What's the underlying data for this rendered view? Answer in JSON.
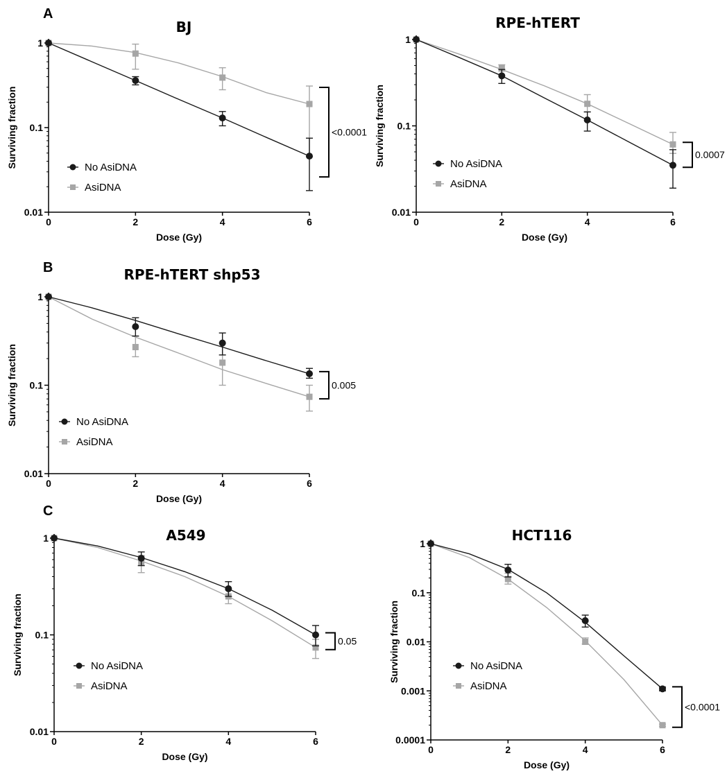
{
  "colors": {
    "no_asidna": "#1a1a1a",
    "asidna": "#a6a6a6",
    "axis": "#000000"
  },
  "chart_data": [
    {
      "panel": "A",
      "type": "line",
      "title": "BJ",
      "xlabel": "Dose (Gy)",
      "ylabel": "Surviving fraction",
      "yscale": "log",
      "xlim": [
        0,
        6
      ],
      "ylim": [
        0.01,
        1
      ],
      "xticks": [
        0,
        2,
        4,
        6
      ],
      "yticks": [
        1,
        0.1,
        0.01
      ],
      "yticklabels": [
        "1",
        "0.1",
        "0.01"
      ],
      "legend_position": "bottom-left",
      "significance": "<0.0001",
      "series": [
        {
          "name": "No AsiDNA",
          "color": "#1a1a1a",
          "marker": "circle",
          "x": [
            0,
            2,
            4,
            6
          ],
          "y": [
            1,
            0.36,
            0.13,
            0.046
          ],
          "err_low": [
            1,
            0.32,
            0.105,
            0.018
          ],
          "err_high": [
            1,
            0.4,
            0.155,
            0.075
          ],
          "fit_x": [
            0,
            1,
            2,
            3,
            4,
            5,
            6
          ],
          "fit_y": [
            1,
            0.6,
            0.36,
            0.215,
            0.13,
            0.077,
            0.046
          ]
        },
        {
          "name": "AsiDNA",
          "color": "#a6a6a6",
          "marker": "square",
          "x": [
            0,
            2,
            4,
            6
          ],
          "y": [
            1,
            0.75,
            0.39,
            0.19
          ],
          "err_low": [
            1,
            0.49,
            0.28,
            0.045
          ],
          "err_high": [
            1,
            0.97,
            0.51,
            0.31
          ],
          "fit_x": [
            0,
            1,
            2,
            3,
            4,
            5,
            6
          ],
          "fit_y": [
            1,
            0.92,
            0.77,
            0.58,
            0.4,
            0.26,
            0.19
          ]
        }
      ]
    },
    {
      "panel": "",
      "type": "line",
      "title": "RPE-hTERT",
      "xlabel": "Dose (Gy)",
      "ylabel": "Surviving fraction",
      "yscale": "log",
      "xlim": [
        0,
        6
      ],
      "ylim": [
        0.01,
        1
      ],
      "xticks": [
        0,
        2,
        4,
        6
      ],
      "yticks": [
        1,
        0.1,
        0.01
      ],
      "yticklabels": [
        "1",
        "0.1",
        "0.01"
      ],
      "legend_position": "bottom-left",
      "significance": "0.0007",
      "series": [
        {
          "name": "No AsiDNA",
          "color": "#1a1a1a",
          "marker": "circle",
          "x": [
            0,
            2,
            4,
            6
          ],
          "y": [
            1,
            0.38,
            0.117,
            0.035
          ],
          "err_low": [
            1,
            0.31,
            0.087,
            0.019
          ],
          "err_high": [
            1,
            0.45,
            0.145,
            0.053
          ],
          "fit_x": [
            0,
            1,
            2,
            3,
            4,
            5,
            6
          ],
          "fit_y": [
            1,
            0.62,
            0.38,
            0.21,
            0.117,
            0.064,
            0.035
          ]
        },
        {
          "name": "AsiDNA",
          "color": "#a6a6a6",
          "marker": "square",
          "x": [
            0,
            2,
            4,
            6
          ],
          "y": [
            1,
            0.47,
            0.18,
            0.061
          ],
          "err_low": [
            1,
            0.43,
            0.145,
            0.048
          ],
          "err_high": [
            1,
            0.51,
            0.23,
            0.084
          ],
          "fit_x": [
            0,
            1,
            2,
            3,
            4,
            5,
            6
          ],
          "fit_y": [
            1,
            0.68,
            0.45,
            0.29,
            0.18,
            0.105,
            0.061
          ]
        }
      ]
    },
    {
      "panel": "B",
      "type": "line",
      "title": "RPE-hTERT shp53",
      "xlabel": "Dose (Gy)",
      "ylabel": "Surviving fraction",
      "yscale": "log",
      "xlim": [
        0,
        6
      ],
      "ylim": [
        0.01,
        1
      ],
      "xticks": [
        0,
        2,
        4,
        6
      ],
      "yticks": [
        1,
        0.1,
        0.01
      ],
      "yticklabels": [
        "1",
        "0.1",
        "0.01"
      ],
      "legend_position": "bottom-left",
      "significance": "0.005",
      "series": [
        {
          "name": "No AsiDNA",
          "color": "#1a1a1a",
          "marker": "circle",
          "x": [
            0,
            2,
            4,
            6
          ],
          "y": [
            1,
            0.46,
            0.3,
            0.135
          ],
          "err_low": [
            1,
            0.36,
            0.22,
            0.12
          ],
          "err_high": [
            1,
            0.58,
            0.39,
            0.155
          ],
          "fit_x": [
            0,
            1,
            2,
            3,
            4,
            5,
            6
          ],
          "fit_y": [
            1,
            0.75,
            0.54,
            0.38,
            0.27,
            0.19,
            0.135
          ]
        },
        {
          "name": "AsiDNA",
          "color": "#a6a6a6",
          "marker": "square",
          "x": [
            0,
            2,
            4,
            6
          ],
          "y": [
            1,
            0.27,
            0.18,
            0.074
          ],
          "err_low": [
            1,
            0.21,
            0.1,
            0.051
          ],
          "err_high": [
            1,
            0.36,
            0.3,
            0.1
          ],
          "fit_x": [
            0,
            1,
            2,
            3,
            4,
            5,
            6
          ],
          "fit_y": [
            1,
            0.56,
            0.35,
            0.23,
            0.15,
            0.105,
            0.074
          ]
        }
      ]
    },
    {
      "panel": "C",
      "type": "line",
      "title": "A549",
      "xlabel": "Dose (Gy)",
      "ylabel": "Surviving fraction",
      "yscale": "log",
      "xlim": [
        0,
        6
      ],
      "ylim": [
        0.01,
        1
      ],
      "xticks": [
        0,
        2,
        4,
        6
      ],
      "yticks": [
        1,
        0.1,
        0.01
      ],
      "yticklabels": [
        "1",
        "0.1",
        "0.01"
      ],
      "legend_position": "bottom-left",
      "significance": "0.05",
      "series": [
        {
          "name": "No AsiDNA",
          "color": "#1a1a1a",
          "marker": "circle",
          "x": [
            0,
            2,
            4,
            6
          ],
          "y": [
            1,
            0.62,
            0.3,
            0.1
          ],
          "err_low": [
            1,
            0.52,
            0.25,
            0.077
          ],
          "err_high": [
            1,
            0.72,
            0.355,
            0.125
          ],
          "fit_x": [
            0,
            1,
            2,
            3,
            4,
            5,
            6
          ],
          "fit_y": [
            1,
            0.83,
            0.63,
            0.45,
            0.3,
            0.18,
            0.1
          ]
        },
        {
          "name": "AsiDNA",
          "color": "#a6a6a6",
          "marker": "square",
          "x": [
            0,
            2,
            4,
            6
          ],
          "y": [
            1,
            0.56,
            0.25,
            0.074
          ],
          "err_low": [
            1,
            0.44,
            0.21,
            0.057
          ],
          "err_high": [
            1,
            0.66,
            0.29,
            0.09
          ],
          "fit_x": [
            0,
            1,
            2,
            3,
            4,
            5,
            6
          ],
          "fit_y": [
            1,
            0.8,
            0.58,
            0.4,
            0.25,
            0.14,
            0.074
          ]
        }
      ]
    },
    {
      "panel": "",
      "type": "line",
      "title": "HCT116",
      "xlabel": "Dose (Gy)",
      "ylabel": "Surviving fraction",
      "yscale": "log",
      "xlim": [
        0,
        6
      ],
      "ylim": [
        0.0001,
        1
      ],
      "xticks": [
        0,
        2,
        4,
        6
      ],
      "yticks": [
        1,
        0.1,
        0.01,
        0.001,
        0.0001
      ],
      "yticklabels": [
        "1",
        "0.1",
        "0.01",
        "0.001",
        "0.0001"
      ],
      "legend_position": "bottom-left",
      "significance": "<0.0001",
      "series": [
        {
          "name": "No AsiDNA",
          "color": "#1a1a1a",
          "marker": "circle",
          "x": [
            0,
            2,
            4,
            6
          ],
          "y": [
            1,
            0.29,
            0.027,
            0.0011
          ],
          "err_low": [
            1,
            0.21,
            0.02,
            0.001
          ],
          "err_high": [
            1,
            0.38,
            0.035,
            0.0012
          ],
          "fit_x": [
            0,
            1,
            2,
            3,
            4,
            5,
            6
          ],
          "fit_y": [
            1,
            0.62,
            0.3,
            0.1,
            0.025,
            0.0052,
            0.0011
          ]
        },
        {
          "name": "AsiDNA",
          "color": "#a6a6a6",
          "marker": "square",
          "x": [
            0,
            2,
            4,
            6
          ],
          "y": [
            1,
            0.19,
            0.01,
            0.0002
          ],
          "err_low": [
            1,
            0.15,
            0.009,
            0.00019
          ],
          "err_high": [
            1,
            0.25,
            0.012,
            0.00021
          ],
          "fit_x": [
            0,
            1,
            2,
            3,
            4,
            5,
            6
          ],
          "fit_y": [
            1,
            0.52,
            0.19,
            0.05,
            0.0105,
            0.0017,
            0.0002
          ]
        }
      ]
    }
  ]
}
